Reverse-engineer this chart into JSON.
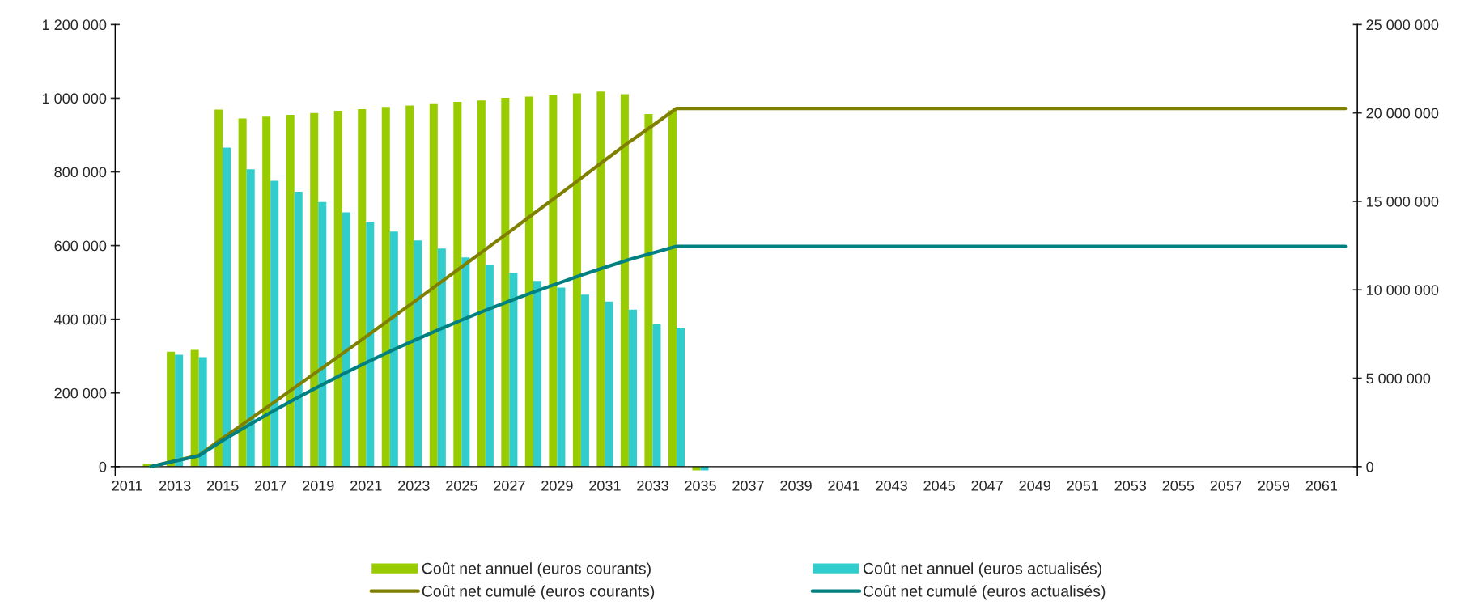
{
  "chart_data": {
    "type": "bar",
    "categories": [
      "2011",
      null,
      "2013",
      null,
      "2015",
      null,
      "2017",
      null,
      "2019",
      null,
      "2021",
      null,
      "2023",
      null,
      "2025",
      null,
      "2027",
      null,
      "2029",
      null,
      "2031",
      null,
      "2033",
      null,
      "2035",
      null,
      "2037",
      null,
      "2039",
      null,
      "2041",
      null,
      "2043",
      null,
      "2045",
      null,
      "2047",
      null,
      "2049",
      null,
      "2051",
      null,
      "2053",
      null,
      "2055",
      null,
      "2057",
      null,
      "2059",
      null,
      "2061",
      null
    ],
    "series": [
      {
        "name": "Coût net annuel (euros courants)",
        "color": "#99cc00",
        "values": [
          null,
          8000,
          312000,
          317000,
          969000,
          945000,
          950000,
          955000,
          960000,
          966000,
          970000,
          976000,
          980000,
          986000,
          990000,
          994000,
          1001000,
          1004000,
          1009000,
          1013000,
          1018000,
          1011000,
          957000,
          967000,
          -10000,
          null,
          null,
          null,
          null,
          null,
          null,
          null,
          null,
          null,
          null,
          null,
          null,
          null,
          null,
          null,
          null,
          null,
          null,
          null,
          null,
          null,
          null,
          null,
          null,
          null,
          null,
          null
        ]
      },
      {
        "name": "Coût net annuel (euros actualisés)",
        "color": "#33cccc",
        "values": [
          null,
          null,
          304000,
          297000,
          866000,
          807000,
          776000,
          746000,
          718000,
          690000,
          665000,
          638000,
          614000,
          592000,
          568000,
          547000,
          526000,
          504000,
          486000,
          467000,
          448000,
          426000,
          386000,
          375000,
          -10000,
          null,
          null,
          null,
          null,
          null,
          null,
          null,
          null,
          null,
          null,
          null,
          null,
          null,
          null,
          null,
          null,
          null,
          null,
          null,
          null,
          null,
          null,
          null,
          null,
          null,
          null,
          null
        ]
      },
      {
        "name": "Coût net cumulé (euros courants)",
        "type": "line",
        "axis": "y2",
        "color": "#808000",
        "values": [
          null,
          0,
          320000,
          640000,
          1610000,
          2550000,
          3500000,
          4460000,
          5420000,
          6380000,
          7350000,
          8330000,
          9310000,
          10300000,
          11290000,
          12280000,
          13280000,
          14290000,
          15290000,
          16310000,
          17330000,
          18340000,
          19290000,
          20260000,
          20250000,
          20250000,
          20250000,
          20250000,
          20250000,
          20250000,
          20250000,
          20250000,
          20250000,
          20250000,
          20250000,
          20250000,
          20250000,
          20250000,
          20250000,
          20250000,
          20250000,
          20250000,
          20250000,
          20250000,
          20250000,
          20250000,
          20250000,
          20250000,
          20250000,
          20250000,
          20250000,
          20250000
        ]
      },
      {
        "name": "Coût net cumulé (euros actualisés)",
        "type": "line",
        "axis": "y2",
        "color": "#008080",
        "values": [
          null,
          0,
          310000,
          610000,
          1480000,
          2280000,
          3060000,
          3810000,
          4520000,
          5210000,
          5880000,
          6520000,
          7130000,
          7720000,
          8290000,
          8840000,
          9360000,
          9870000,
          10350000,
          10820000,
          11270000,
          11700000,
          12080000,
          12460000,
          12450000,
          12450000,
          12450000,
          12450000,
          12450000,
          12450000,
          12450000,
          12450000,
          12450000,
          12450000,
          12450000,
          12450000,
          12450000,
          12450000,
          12450000,
          12450000,
          12450000,
          12450000,
          12450000,
          12450000,
          12450000,
          12450000,
          12450000,
          12450000,
          12450000,
          12450000,
          12450000,
          12450000
        ]
      }
    ],
    "ylim": [
      -25000,
      1200000
    ],
    "yticks": [
      0,
      {
        "value": 200000,
        "label": "200 000"
      },
      {
        "value": 400000,
        "label": "400 000"
      },
      {
        "value": 600000,
        "label": "600 000"
      },
      {
        "value": 800000,
        "label": "800 000"
      },
      {
        "value": 1000000,
        "label": "1 000 000"
      },
      {
        "value": 1200000,
        "label": "1 200 000"
      }
    ],
    "y2lim": [
      -520833,
      25000000
    ],
    "y2ticks": [
      0,
      {
        "value": 5000000,
        "label": "5 000 000"
      },
      {
        "value": 10000000,
        "label": "10 000 000"
      },
      {
        "value": 15000000,
        "label": "15 000 000"
      },
      {
        "value": 20000000,
        "label": "20 000 000"
      },
      {
        "value": 25000000,
        "label": "25 000 000"
      }
    ],
    "grid": false,
    "legend": "bottom",
    "line_style": "solid",
    "marker": "none"
  }
}
